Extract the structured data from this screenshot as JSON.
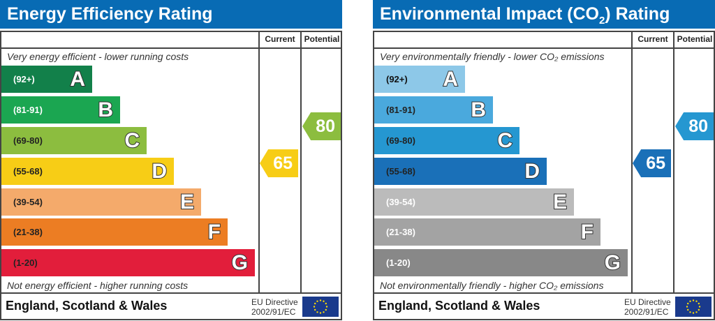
{
  "chart_data": [
    {
      "type": "bar",
      "title": "Energy Efficiency Rating",
      "column_headers": [
        "Current",
        "Potential"
      ],
      "top_note": "Very energy efficient - lower running costs",
      "bottom_note": "Not energy efficient - higher running costs",
      "bands": [
        {
          "letter": "A",
          "range": "(92+)",
          "color": "#12804a",
          "text_color": "#fff"
        },
        {
          "letter": "B",
          "range": "(81-91)",
          "color": "#1ba651",
          "text_color": "#fff"
        },
        {
          "letter": "C",
          "range": "(69-80)",
          "color": "#8cbd3f",
          "text_color": "#222"
        },
        {
          "letter": "D",
          "range": "(55-68)",
          "color": "#f7cd16",
          "text_color": "#222"
        },
        {
          "letter": "E",
          "range": "(39-54)",
          "color": "#f4aa6b",
          "text_color": "#222"
        },
        {
          "letter": "F",
          "range": "(21-38)",
          "color": "#ec7d23",
          "text_color": "#222"
        },
        {
          "letter": "G",
          "range": "(1-20)",
          "color": "#e21e3b",
          "text_color": "#222"
        }
      ],
      "current": {
        "value": "65",
        "band": "D",
        "color": "#f7cd16"
      },
      "potential": {
        "value": "80",
        "band": "C",
        "color": "#8cbd3f"
      },
      "footer": "England, Scotland & Wales",
      "directive": [
        "EU Directive",
        "2002/91/EC"
      ]
    },
    {
      "type": "bar",
      "title": "Environmental Impact (CO",
      "title_sub": "2",
      "title_end": ") Rating",
      "column_headers": [
        "Current",
        "Potential"
      ],
      "top_note": "Very environmentally friendly - lower CO₂ emissions",
      "bottom_note": "Not environmentally friendly - higher CO₂ emissions",
      "bands": [
        {
          "letter": "A",
          "range": "(92+)",
          "color": "#8dc8e8",
          "text_color": "#111"
        },
        {
          "letter": "B",
          "range": "(81-91)",
          "color": "#4aa9dd",
          "text_color": "#222"
        },
        {
          "letter": "C",
          "range": "(69-80)",
          "color": "#2597d1",
          "text_color": "#222"
        },
        {
          "letter": "D",
          "range": "(55-68)",
          "color": "#1a70b8",
          "text_color": "#222"
        },
        {
          "letter": "E",
          "range": "(39-54)",
          "color": "#bbbbbb",
          "text_color": "#fff"
        },
        {
          "letter": "F",
          "range": "(21-38)",
          "color": "#a3a3a3",
          "text_color": "#fff"
        },
        {
          "letter": "G",
          "range": "(1-20)",
          "color": "#888888",
          "text_color": "#fff"
        }
      ],
      "current": {
        "value": "65",
        "band": "D",
        "color": "#1a70b8"
      },
      "potential": {
        "value": "80",
        "band": "C",
        "color": "#2597d1"
      },
      "footer": "England, Scotland & Wales",
      "directive": [
        "EU Directive",
        "2002/91/EC"
      ]
    }
  ]
}
